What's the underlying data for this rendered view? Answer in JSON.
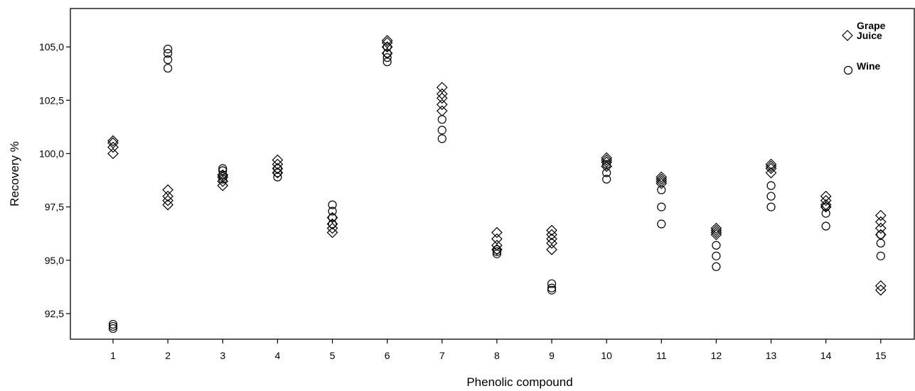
{
  "chart_data": {
    "type": "scatter",
    "title": "",
    "xlabel": "Phenolic compound",
    "ylabel": "Recovery %",
    "categories": [
      "1",
      "2",
      "3",
      "4",
      "5",
      "6",
      "7",
      "8",
      "9",
      "10",
      "11",
      "12",
      "13",
      "14",
      "15"
    ],
    "ylim": [
      91.3,
      106.8
    ],
    "yticks": [
      92.5,
      95.0,
      97.5,
      100.0,
      102.5,
      105.0
    ],
    "ytick_labels": [
      "92,5",
      "95,0",
      "97,5",
      "100,0",
      "102,5",
      "105,0"
    ],
    "grid": false,
    "legend_position": "top-right",
    "series": [
      {
        "name": "Grape Juice",
        "marker": "diamond",
        "points": [
          [
            1,
            100.0
          ],
          [
            1,
            100.3
          ],
          [
            1,
            100.5
          ],
          [
            1,
            100.6
          ],
          [
            2,
            97.6
          ],
          [
            2,
            97.8
          ],
          [
            2,
            98.0
          ],
          [
            2,
            98.3
          ],
          [
            3,
            98.5
          ],
          [
            3,
            98.7
          ],
          [
            3,
            98.9
          ],
          [
            3,
            99.0
          ],
          [
            4,
            99.1
          ],
          [
            4,
            99.3
          ],
          [
            4,
            99.5
          ],
          [
            4,
            99.7
          ],
          [
            5,
            96.3
          ],
          [
            5,
            96.5
          ],
          [
            5,
            96.7
          ],
          [
            5,
            97.0
          ],
          [
            6,
            104.7
          ],
          [
            6,
            105.0
          ],
          [
            6,
            105.2
          ],
          [
            6,
            105.3
          ],
          [
            7,
            102.0
          ],
          [
            7,
            102.3
          ],
          [
            7,
            102.6
          ],
          [
            7,
            102.8
          ],
          [
            7,
            103.1
          ],
          [
            8,
            95.5
          ],
          [
            8,
            95.7
          ],
          [
            8,
            96.0
          ],
          [
            8,
            96.3
          ],
          [
            9,
            95.5
          ],
          [
            9,
            95.8
          ],
          [
            9,
            96.0
          ],
          [
            9,
            96.2
          ],
          [
            9,
            96.4
          ],
          [
            10,
            99.4
          ],
          [
            10,
            99.6
          ],
          [
            10,
            99.7
          ],
          [
            10,
            99.8
          ],
          [
            11,
            98.6
          ],
          [
            11,
            98.7
          ],
          [
            11,
            98.8
          ],
          [
            11,
            98.9
          ],
          [
            12,
            96.2
          ],
          [
            12,
            96.3
          ],
          [
            12,
            96.4
          ],
          [
            12,
            96.5
          ],
          [
            13,
            99.1
          ],
          [
            13,
            99.3
          ],
          [
            13,
            99.4
          ],
          [
            13,
            99.5
          ],
          [
            14,
            97.5
          ],
          [
            14,
            97.6
          ],
          [
            14,
            97.8
          ],
          [
            14,
            98.0
          ],
          [
            15,
            93.6
          ],
          [
            15,
            93.8
          ],
          [
            15,
            96.2
          ],
          [
            15,
            96.5
          ],
          [
            15,
            96.8
          ],
          [
            15,
            97.1
          ]
        ]
      },
      {
        "name": "Wine",
        "marker": "circle",
        "points": [
          [
            1,
            91.8
          ],
          [
            1,
            91.9
          ],
          [
            1,
            92.0
          ],
          [
            2,
            104.0
          ],
          [
            2,
            104.4
          ],
          [
            2,
            104.7
          ],
          [
            2,
            104.9
          ],
          [
            3,
            98.8
          ],
          [
            3,
            99.0
          ],
          [
            3,
            99.2
          ],
          [
            3,
            99.3
          ],
          [
            4,
            98.9
          ],
          [
            4,
            99.1
          ],
          [
            4,
            99.3
          ],
          [
            5,
            96.7
          ],
          [
            5,
            97.0
          ],
          [
            5,
            97.3
          ],
          [
            5,
            97.6
          ],
          [
            6,
            104.3
          ],
          [
            6,
            104.5
          ],
          [
            6,
            104.7
          ],
          [
            6,
            105.0
          ],
          [
            7,
            100.7
          ],
          [
            7,
            101.1
          ],
          [
            7,
            101.6
          ],
          [
            8,
            95.3
          ],
          [
            8,
            95.4
          ],
          [
            8,
            95.5
          ],
          [
            9,
            93.6
          ],
          [
            9,
            93.7
          ],
          [
            9,
            93.9
          ],
          [
            10,
            98.8
          ],
          [
            10,
            99.1
          ],
          [
            10,
            99.5
          ],
          [
            11,
            96.7
          ],
          [
            11,
            97.5
          ],
          [
            11,
            98.3
          ],
          [
            12,
            94.7
          ],
          [
            12,
            95.2
          ],
          [
            12,
            95.7
          ],
          [
            13,
            97.5
          ],
          [
            13,
            98.0
          ],
          [
            13,
            98.5
          ],
          [
            14,
            96.6
          ],
          [
            14,
            97.2
          ],
          [
            14,
            97.5
          ],
          [
            15,
            95.2
          ],
          [
            15,
            95.8
          ],
          [
            15,
            96.2
          ]
        ]
      }
    ],
    "legend": {
      "entries": [
        {
          "series": "Grape Juice",
          "lines": [
            "Grape",
            "Juice"
          ],
          "marker": "diamond"
        },
        {
          "series": "Wine",
          "lines": [
            "Wine"
          ],
          "marker": "circle"
        }
      ]
    }
  }
}
